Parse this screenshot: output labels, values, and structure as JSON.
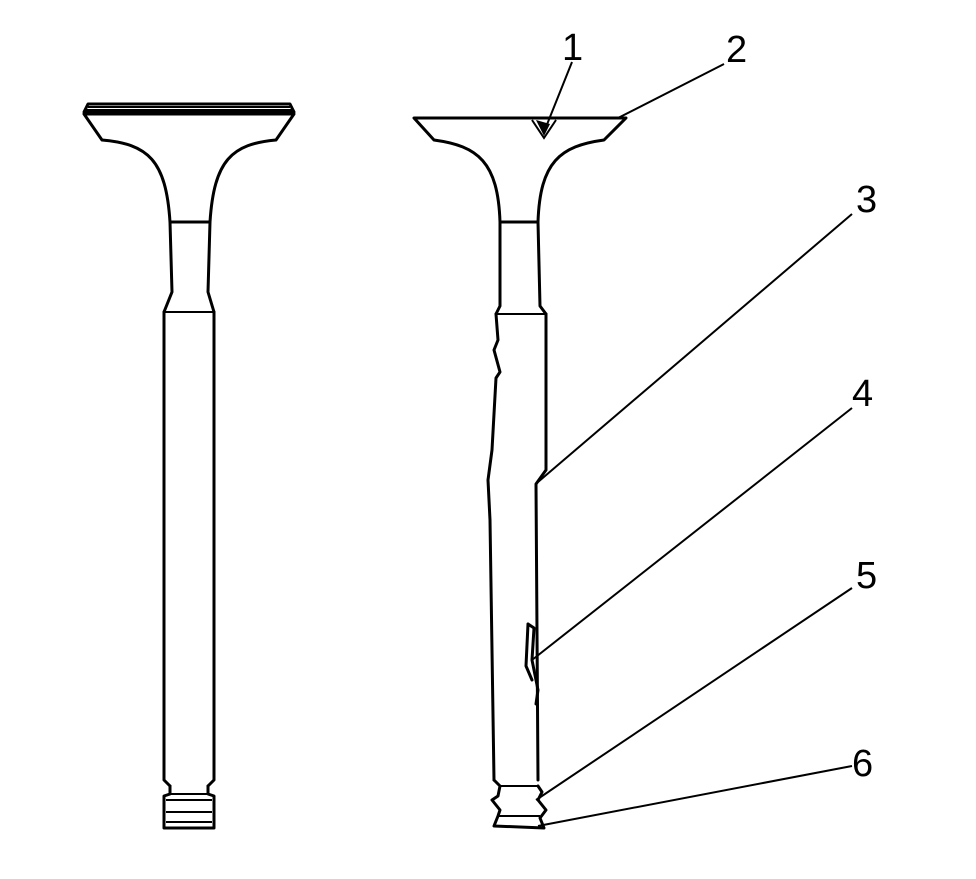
{
  "diagram": {
    "left_valve": {},
    "right_valve": {},
    "callouts": [
      {
        "id": "callout-1",
        "label": "1"
      },
      {
        "id": "callout-2",
        "label": "2"
      },
      {
        "id": "callout-3",
        "label": "3"
      },
      {
        "id": "callout-4",
        "label": "4"
      },
      {
        "id": "callout-5",
        "label": "5"
      },
      {
        "id": "callout-6",
        "label": "6"
      }
    ]
  }
}
